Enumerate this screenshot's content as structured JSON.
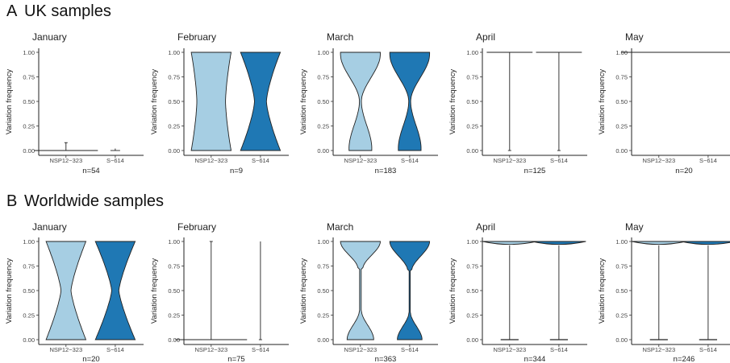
{
  "sections": [
    {
      "letter": "A",
      "title": "UK samples",
      "panels": [
        {
          "month": "January",
          "n": "n=54",
          "shape": "jan_uk"
        },
        {
          "month": "February",
          "n": "n=9",
          "shape": "feb_uk"
        },
        {
          "month": "March",
          "n": "n=183",
          "shape": "mar_uk"
        },
        {
          "month": "April",
          "n": "n=125",
          "shape": "apr_uk"
        },
        {
          "month": "May",
          "n": "n=20",
          "shape": "may_uk"
        }
      ]
    },
    {
      "letter": "B",
      "title": "Worldwide samples",
      "panels": [
        {
          "month": "January",
          "n": "n=20",
          "shape": "jan_ww"
        },
        {
          "month": "February",
          "n": "n=75",
          "shape": "feb_ww"
        },
        {
          "month": "March",
          "n": "n=363",
          "shape": "mar_ww"
        },
        {
          "month": "April",
          "n": "n=344",
          "shape": "apr_ww"
        },
        {
          "month": "May",
          "n": "n=246",
          "shape": "may_ww"
        }
      ]
    }
  ],
  "chart_data": {
    "type": "violin",
    "ylabel": "Variation frequency",
    "categories": [
      "NSP12−323",
      "S−614"
    ],
    "ylim": [
      0,
      1
    ],
    "yticks": [
      "0.00",
      "0.25",
      "0.50",
      "0.75",
      "1.00"
    ],
    "colors": {
      "NSP12−323": "#a6cee3",
      "S−614": "#1f78b4"
    }
  }
}
